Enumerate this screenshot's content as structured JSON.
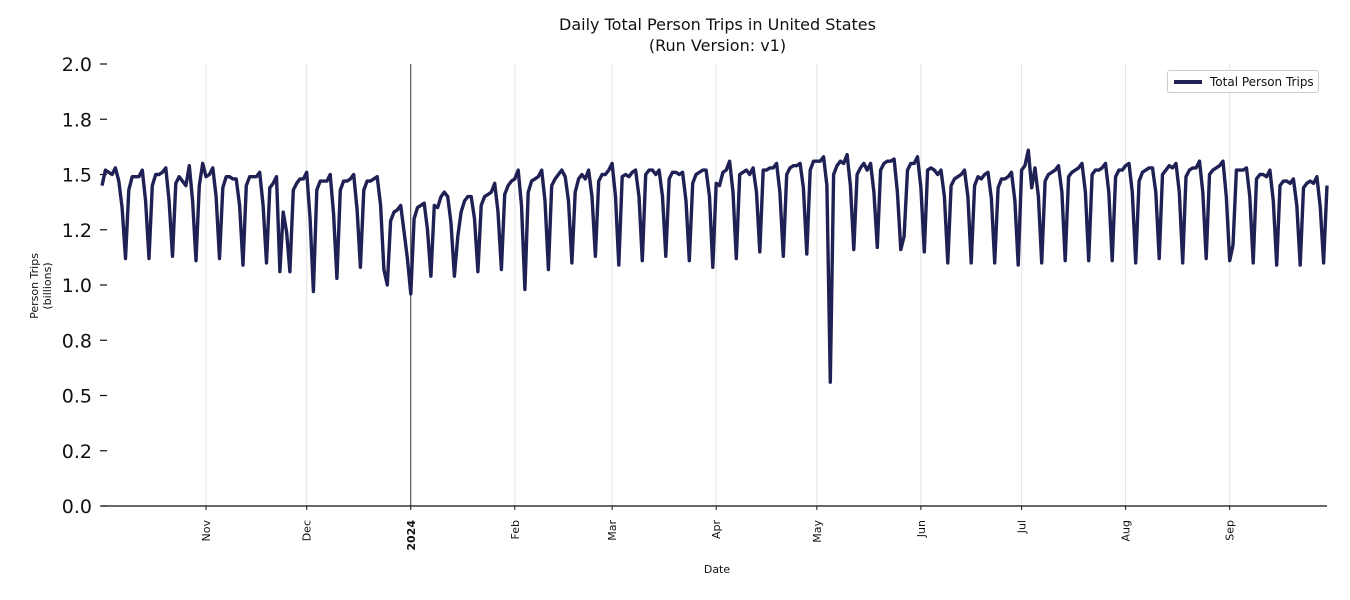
{
  "chart_data": {
    "type": "line",
    "title": "Daily Total Person Trips in United States",
    "subtitle": "(Run Version: v1)",
    "xlabel": "Date",
    "ylabel": "Person Trips\n(billions)",
    "ylim": [
      0,
      2.0
    ],
    "y_ticks": [
      0,
      0.25,
      0.5,
      0.75,
      1.0,
      1.25,
      1.5,
      1.75,
      2.0
    ],
    "y_tick_labels": [
      "0.0",
      "0.2",
      "0.5",
      "0.8",
      "1.0",
      "1.2",
      "1.5",
      "1.8",
      "2.0"
    ],
    "x_range": [
      "2023-10-01",
      "2024-09-30"
    ],
    "x_ticks": [
      {
        "date": "2023-11-01",
        "label": "Nov",
        "bold": false
      },
      {
        "date": "2023-12-01",
        "label": "Dec",
        "bold": false
      },
      {
        "date": "2024-01-01",
        "label": "2024",
        "bold": true
      },
      {
        "date": "2024-02-01",
        "label": "Feb",
        "bold": false
      },
      {
        "date": "2024-03-01",
        "label": "Mar",
        "bold": false
      },
      {
        "date": "2024-04-01",
        "label": "Apr",
        "bold": false
      },
      {
        "date": "2024-05-01",
        "label": "May",
        "bold": false
      },
      {
        "date": "2024-06-01",
        "label": "Jun",
        "bold": false
      },
      {
        "date": "2024-07-01",
        "label": "Jul",
        "bold": false
      },
      {
        "date": "2024-08-01",
        "label": "Aug",
        "bold": false
      },
      {
        "date": "2024-09-01",
        "label": "Sep",
        "bold": false
      }
    ],
    "grid": "vertical at month ticks",
    "legend": {
      "placement": "top-right",
      "entries": [
        "Total Person Trips"
      ]
    },
    "series": [
      {
        "name": "Total Person Trips",
        "color": "#1f2154",
        "daily_values_by_month": {
          "2023-10": [
            1.45,
            1.52,
            1.51,
            1.5,
            1.53,
            1.47,
            1.35,
            1.12,
            1.43,
            1.49,
            1.49,
            1.49,
            1.52,
            1.38,
            1.12,
            1.45,
            1.5,
            1.5,
            1.51,
            1.53,
            1.38,
            1.13,
            1.46,
            1.49,
            1.47,
            1.45,
            1.54,
            1.38,
            1.11,
            1.45,
            1.55
          ],
          "2023-11": [
            1.49,
            1.5,
            1.53,
            1.4,
            1.12,
            1.44,
            1.49,
            1.49,
            1.48,
            1.48,
            1.36,
            1.09,
            1.45,
            1.49,
            1.49,
            1.49,
            1.51,
            1.36,
            1.1,
            1.44,
            1.46,
            1.49,
            1.06,
            1.33,
            1.24,
            1.06,
            1.43,
            1.46,
            1.48,
            1.48
          ],
          "2023-12": [
            1.51,
            1.3,
            0.97,
            1.43,
            1.47,
            1.47,
            1.47,
            1.5,
            1.32,
            1.03,
            1.43,
            1.47,
            1.47,
            1.48,
            1.5,
            1.34,
            1.08,
            1.43,
            1.47,
            1.47,
            1.48,
            1.49,
            1.36,
            1.07,
            1.0,
            1.29,
            1.33,
            1.34,
            1.36,
            1.24,
            1.12
          ],
          "2024-01": [
            0.96,
            1.3,
            1.35,
            1.36,
            1.37,
            1.25,
            1.04,
            1.36,
            1.35,
            1.4,
            1.42,
            1.4,
            1.28,
            1.04,
            1.22,
            1.33,
            1.38,
            1.4,
            1.4,
            1.3,
            1.06,
            1.36,
            1.4,
            1.41,
            1.42,
            1.46,
            1.33,
            1.07,
            1.41,
            1.45,
            1.47
          ],
          "2024-02": [
            1.48,
            1.52,
            1.36,
            0.98,
            1.42,
            1.47,
            1.48,
            1.49,
            1.52,
            1.38,
            1.07,
            1.45,
            1.48,
            1.5,
            1.52,
            1.49,
            1.38,
            1.1,
            1.42,
            1.48,
            1.5,
            1.48,
            1.52,
            1.4,
            1.13,
            1.47,
            1.5,
            1.5,
            1.52
          ],
          "2024-03": [
            1.55,
            1.4,
            1.09,
            1.49,
            1.5,
            1.49,
            1.51,
            1.52,
            1.4,
            1.11,
            1.5,
            1.52,
            1.52,
            1.5,
            1.52,
            1.4,
            1.13,
            1.48,
            1.51,
            1.51,
            1.5,
            1.51,
            1.38,
            1.11,
            1.46,
            1.5,
            1.51,
            1.52,
            1.52,
            1.4,
            1.08
          ],
          "2024-04": [
            1.46,
            1.45,
            1.51,
            1.52,
            1.56,
            1.42,
            1.12,
            1.5,
            1.51,
            1.52,
            1.5,
            1.53,
            1.42,
            1.15,
            1.52,
            1.52,
            1.53,
            1.53,
            1.55,
            1.42,
            1.13,
            1.5,
            1.53,
            1.54,
            1.54,
            1.55,
            1.44,
            1.14,
            1.52,
            1.56
          ],
          "2024-05": [
            1.56,
            1.56,
            1.58,
            1.45,
            0.56,
            1.5,
            1.54,
            1.56,
            1.55,
            1.59,
            1.45,
            1.16,
            1.5,
            1.53,
            1.55,
            1.52,
            1.55,
            1.42,
            1.17,
            1.52,
            1.55,
            1.56,
            1.56,
            1.57,
            1.42,
            1.16,
            1.22,
            1.52,
            1.55,
            1.55,
            1.58
          ],
          "2024-06": [
            1.44,
            1.15,
            1.52,
            1.53,
            1.52,
            1.5,
            1.52,
            1.4,
            1.1,
            1.45,
            1.48,
            1.49,
            1.5,
            1.52,
            1.4,
            1.1,
            1.45,
            1.49,
            1.48,
            1.5,
            1.51,
            1.39,
            1.1,
            1.44,
            1.48,
            1.48,
            1.49,
            1.51,
            1.38,
            1.09
          ],
          "2024-07": [
            1.52,
            1.54,
            1.61,
            1.44,
            1.53,
            1.4,
            1.1,
            1.47,
            1.5,
            1.51,
            1.52,
            1.54,
            1.42,
            1.11,
            1.49,
            1.51,
            1.52,
            1.53,
            1.55,
            1.42,
            1.11,
            1.5,
            1.52,
            1.52,
            1.53,
            1.55,
            1.42,
            1.11,
            1.49,
            1.52,
            1.52
          ],
          "2024-08": [
            1.54,
            1.55,
            1.42,
            1.1,
            1.47,
            1.51,
            1.52,
            1.53,
            1.53,
            1.42,
            1.12,
            1.5,
            1.52,
            1.54,
            1.53,
            1.55,
            1.42,
            1.1,
            1.49,
            1.52,
            1.53,
            1.53,
            1.56,
            1.42,
            1.12,
            1.5,
            1.52,
            1.53,
            1.54,
            1.56,
            1.4
          ],
          "2024-09": [
            1.11,
            1.18,
            1.52,
            1.52,
            1.52,
            1.53,
            1.4,
            1.1,
            1.48,
            1.5,
            1.5,
            1.49,
            1.52,
            1.38,
            1.09,
            1.45,
            1.47,
            1.47,
            1.46,
            1.48,
            1.36,
            1.09,
            1.44,
            1.46,
            1.47,
            1.46,
            1.49,
            1.35,
            1.1,
            1.45
          ]
        }
      }
    ]
  }
}
